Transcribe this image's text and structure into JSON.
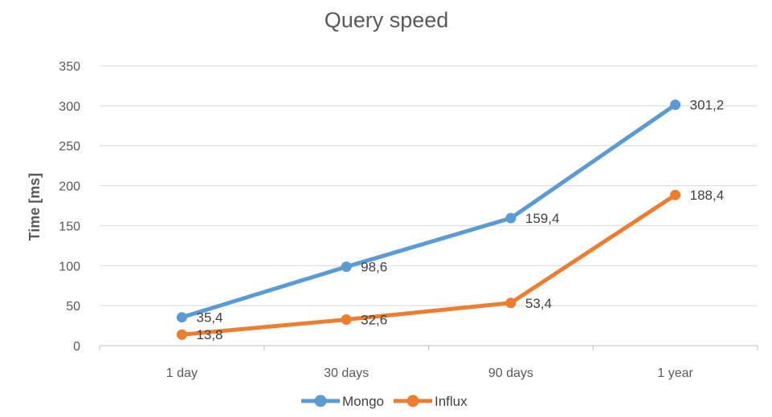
{
  "chart_data": {
    "type": "line",
    "title": "Query speed",
    "xlabel": "",
    "ylabel": "Time [ms]",
    "categories": [
      "1 day",
      "30 days",
      "90 days",
      "1 year"
    ],
    "ylim": [
      0,
      350
    ],
    "yticks": [
      0,
      50,
      100,
      150,
      200,
      250,
      300,
      350
    ],
    "grid": true,
    "legend": "bottom",
    "series": [
      {
        "name": "Mongo",
        "color": "#5B9BD5",
        "values": [
          35.4,
          98.6,
          159.4,
          301.2
        ],
        "labels": [
          "35,4",
          "98,6",
          "159,4",
          "301,2"
        ]
      },
      {
        "name": "Influx",
        "color": "#ED7D31",
        "values": [
          13.8,
          32.6,
          53.4,
          188.4
        ],
        "labels": [
          "13,8",
          "32,6",
          "53,4",
          "188,4"
        ]
      }
    ]
  }
}
